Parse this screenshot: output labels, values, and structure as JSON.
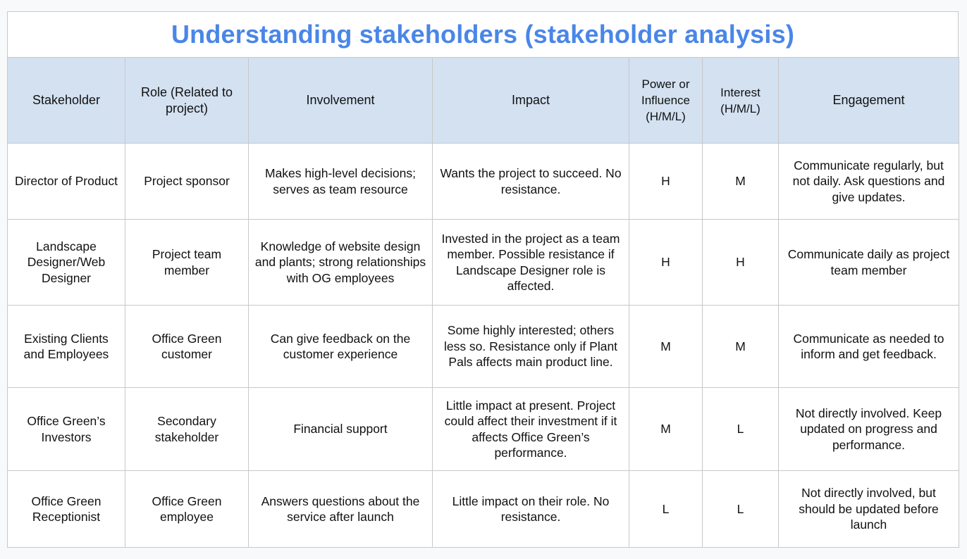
{
  "title": "Understanding stakeholders (stakeholder analysis)",
  "columns": [
    "Stakeholder",
    "Role (Related to project)",
    "Involvement",
    "Impact",
    "Power or Influence (H/M/L)",
    "Interest (H/M/L)",
    "Engagement"
  ],
  "rows": [
    {
      "stakeholder": "Director of Product",
      "role": "Project sponsor",
      "involvement": "Makes high-level decisions; serves as team resource",
      "impact": "Wants the project to succeed. No resistance.",
      "power": "H",
      "interest": "M",
      "engagement": "Communicate regularly, but not daily. Ask questions and give updates."
    },
    {
      "stakeholder": "Landscape Designer/Web Designer",
      "role": "Project team member",
      "involvement": "Knowledge of website design and plants; strong relationships with OG employees",
      "impact": "Invested in the project as a team member. Possible resistance if Landscape Designer role is affected.",
      "power": "H",
      "interest": "H",
      "engagement": "Communicate daily as project team member"
    },
    {
      "stakeholder": "Existing Clients and Employees",
      "role": "Office Green customer",
      "involvement": "Can give feedback on the customer experience",
      "impact": "Some highly interested; others less so. Resistance only if Plant Pals affects main product line.",
      "power": "M",
      "interest": "M",
      "engagement": "Communicate as needed to inform and get feedback."
    },
    {
      "stakeholder": "Office Green’s Investors",
      "role": "Secondary stakeholder",
      "involvement": "Financial support",
      "impact": "Little impact at present. Project could affect their investment if it affects Office Green’s performance.",
      "power": "M",
      "interest": "L",
      "engagement": "Not directly involved. Keep updated on progress and performance."
    },
    {
      "stakeholder": "Office Green Receptionist",
      "role": "Office Green employee",
      "involvement": "Answers questions about the service after launch",
      "impact": "Little impact on their role. No resistance.",
      "power": "L",
      "interest": "L",
      "engagement": "Not directly involved, but should be updated before launch"
    }
  ]
}
